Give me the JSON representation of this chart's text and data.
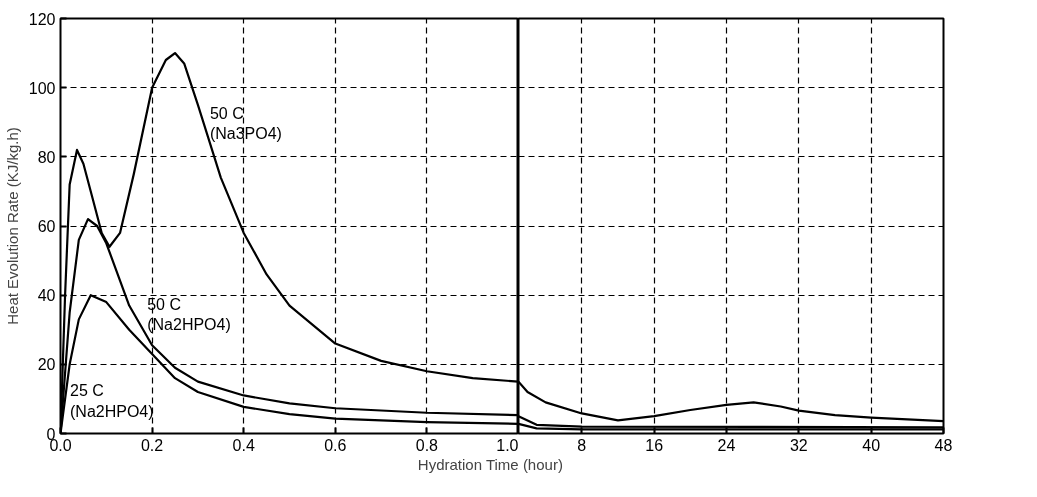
{
  "chart_data": [
    {
      "type": "line",
      "xlabel": "Hydration Time (hour)",
      "ylabel": "Heat Evolution Rate (KJ/kg.h)",
      "xlim": [
        0,
        1
      ],
      "ylim": [
        0,
        120
      ],
      "xticks": [
        {
          "value": 0,
          "label": "0.0"
        },
        0.2,
        0.4,
        0.6,
        0.8,
        {
          "value": 1,
          "label": "1.0"
        }
      ],
      "yticks": [
        0,
        20,
        40,
        60,
        80,
        100,
        120
      ],
      "grid": true,
      "marker": "none",
      "line_style": "solid",
      "series": [
        {
          "name": "50 C\n(Na3PO4)",
          "color": "#000000",
          "x": [
            0,
            0.01,
            0.02,
            0.036,
            0.05,
            0.07,
            0.09,
            0.107,
            0.13,
            0.16,
            0.2,
            0.23,
            0.25,
            0.27,
            0.3,
            0.35,
            0.4,
            0.45,
            0.5,
            0.6,
            0.7,
            0.8,
            0.9,
            1.0
          ],
          "values": [
            0,
            40,
            72,
            82,
            78,
            68,
            58,
            54,
            58,
            75,
            100,
            108,
            110,
            107,
            95,
            74,
            58,
            46,
            37,
            26,
            21,
            18,
            16,
            15
          ]
        },
        {
          "name": "50 C\n(Na2HPO4)",
          "color": "#000000",
          "x": [
            0,
            0.02,
            0.04,
            0.06,
            0.08,
            0.1,
            0.15,
            0.2,
            0.25,
            0.3,
            0.4,
            0.5,
            0.6,
            0.8,
            1.0
          ],
          "values": [
            0,
            35,
            56,
            62,
            60,
            55,
            37,
            25.5,
            19,
            15,
            11,
            8.7,
            7.3,
            6,
            5.3
          ]
        },
        {
          "name": "25 C\n(Na2HPO4)",
          "color": "#000000",
          "x": [
            0,
            0.02,
            0.04,
            0.066,
            0.1,
            0.15,
            0.2,
            0.25,
            0.3,
            0.4,
            0.5,
            0.6,
            0.8,
            1.0
          ],
          "values": [
            0,
            20,
            33,
            40,
            38,
            30,
            23,
            16,
            12,
            7.7,
            5.6,
            4.3,
            3.3,
            2.8
          ]
        }
      ]
    },
    {
      "type": "line",
      "xlim": [
        1,
        48
      ],
      "ylim": [
        0,
        120
      ],
      "xticks": [
        8,
        16,
        24,
        32,
        40,
        48
      ],
      "yticks": [
        0,
        20,
        40,
        60,
        80,
        100,
        120
      ],
      "grid": true,
      "marker": "none",
      "line_style": "solid",
      "tick_labels": "x",
      "series": [
        {
          "color": "#000000",
          "x": [
            1,
            2,
            4,
            8,
            12,
            16,
            20,
            24,
            27,
            30,
            32,
            36,
            40,
            48
          ],
          "values": [
            15,
            12,
            9,
            5.8,
            3.8,
            5,
            6.8,
            8.3,
            9,
            7.8,
            6.6,
            5.3,
            4.6,
            3.6
          ]
        },
        {
          "color": "#000000",
          "x": [
            1,
            3,
            8,
            48
          ],
          "values": [
            5,
            2.5,
            2,
            1.8
          ]
        },
        {
          "color": "#000000",
          "x": [
            1,
            3,
            8,
            48
          ],
          "values": [
            2.8,
            1.5,
            1.2,
            1.2
          ]
        }
      ]
    }
  ]
}
